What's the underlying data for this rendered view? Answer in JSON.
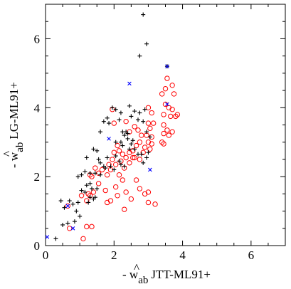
{
  "chart_data": {
    "type": "scatter",
    "xlabel": {
      "hat": "^",
      "prefix": "- w",
      "sub": "ab",
      "suffix": "JTT-ML91+"
    },
    "ylabel": {
      "hat": "^",
      "prefix": "- w",
      "sub": "ab",
      "suffix": "LG-ML91+"
    },
    "xlim": [
      0,
      7
    ],
    "ylim": [
      0,
      7
    ],
    "xticks": [
      "0",
      "2",
      "4",
      "6"
    ],
    "yticks": [
      "0",
      "2",
      "4",
      "6"
    ],
    "grid": false,
    "legend": "none",
    "colors": {
      "black": "#000000",
      "red": "#ff0000",
      "blue": "#0000ff"
    },
    "series": [
      {
        "marker": "plus",
        "color": "#000000",
        "points": [
          [
            2.85,
            6.7
          ],
          [
            2.95,
            5.85
          ],
          [
            2.75,
            5.5
          ],
          [
            3.55,
            5.2
          ],
          [
            1.6,
            3.3
          ],
          [
            1.7,
            3.6
          ],
          [
            1.8,
            3.7
          ],
          [
            1.85,
            3.55
          ],
          [
            1.95,
            4.0
          ],
          [
            2.05,
            3.95
          ],
          [
            2.15,
            3.65
          ],
          [
            2.2,
            3.85
          ],
          [
            2.25,
            3.3
          ],
          [
            2.35,
            3.3
          ],
          [
            2.4,
            3.25
          ],
          [
            2.45,
            4.05
          ],
          [
            2.5,
            3.75
          ],
          [
            2.6,
            3.9
          ],
          [
            2.7,
            3.65
          ],
          [
            2.75,
            3.85
          ],
          [
            2.85,
            3.6
          ],
          [
            2.9,
            3.95
          ],
          [
            2.95,
            3.3
          ],
          [
            3.05,
            3.15
          ],
          [
            2.05,
            3.0
          ],
          [
            2.2,
            3.0
          ],
          [
            2.25,
            2.9
          ],
          [
            2.3,
            3.2
          ],
          [
            2.4,
            3.1
          ],
          [
            2.45,
            2.8
          ],
          [
            2.5,
            2.95
          ],
          [
            2.55,
            3.05
          ],
          [
            2.6,
            2.8
          ],
          [
            2.7,
            2.65
          ],
          [
            2.8,
            2.65
          ],
          [
            2.85,
            2.4
          ],
          [
            2.95,
            2.55
          ],
          [
            3.0,
            2.7
          ],
          [
            1.2,
            2.55
          ],
          [
            1.4,
            2.8
          ],
          [
            1.5,
            2.75
          ],
          [
            1.55,
            2.5
          ],
          [
            1.6,
            2.4
          ],
          [
            1.7,
            2.3
          ],
          [
            1.75,
            2.25
          ],
          [
            1.8,
            2.55
          ],
          [
            1.9,
            2.3
          ],
          [
            2.0,
            2.2
          ],
          [
            2.05,
            2.6
          ],
          [
            2.15,
            2.45
          ],
          [
            2.2,
            2.35
          ],
          [
            2.3,
            2.3
          ],
          [
            0.95,
            2.0
          ],
          [
            1.05,
            2.05
          ],
          [
            1.15,
            2.15
          ],
          [
            1.3,
            2.1
          ],
          [
            1.45,
            2.1
          ],
          [
            1.6,
            2.05
          ],
          [
            1.05,
            1.6
          ],
          [
            1.15,
            1.55
          ],
          [
            1.2,
            1.75
          ],
          [
            1.3,
            1.8
          ],
          [
            1.35,
            1.65
          ],
          [
            1.5,
            1.65
          ],
          [
            0.55,
            1.1
          ],
          [
            0.7,
            1.3
          ],
          [
            0.8,
            1.2
          ],
          [
            0.9,
            1.0
          ],
          [
            0.95,
            1.25
          ],
          [
            0.45,
            1.3
          ],
          [
            1.0,
            0.85
          ],
          [
            0.85,
            0.7
          ],
          [
            0.65,
            0.65
          ],
          [
            0.5,
            0.6
          ],
          [
            0.3,
            0.2
          ],
          [
            1.4,
            1.35
          ],
          [
            1.3,
            1.4
          ],
          [
            1.25,
            1.25
          ],
          [
            1.45,
            1.4
          ]
        ]
      },
      {
        "marker": "circle",
        "color": "#ff0000",
        "points": [
          [
            3.55,
            4.85
          ],
          [
            3.5,
            4.55
          ],
          [
            3.7,
            4.65
          ],
          [
            3.75,
            4.4
          ],
          [
            3.4,
            4.4
          ],
          [
            3.5,
            4.1
          ],
          [
            3.6,
            4.0
          ],
          [
            3.7,
            3.95
          ],
          [
            3.8,
            3.75
          ],
          [
            3.65,
            3.75
          ],
          [
            3.85,
            3.8
          ],
          [
            3.45,
            3.8
          ],
          [
            3.45,
            3.5
          ],
          [
            3.55,
            3.35
          ],
          [
            3.45,
            3.25
          ],
          [
            3.6,
            3.2
          ],
          [
            3.7,
            3.3
          ],
          [
            3.4,
            3.0
          ],
          [
            3.45,
            2.95
          ],
          [
            3.0,
            4.0
          ],
          [
            3.1,
            3.85
          ],
          [
            3.0,
            3.55
          ],
          [
            3.15,
            3.55
          ],
          [
            3.05,
            3.4
          ],
          [
            2.95,
            3.2
          ],
          [
            3.1,
            3.15
          ],
          [
            3.0,
            3.0
          ],
          [
            3.1,
            2.95
          ],
          [
            2.9,
            2.85
          ],
          [
            3.05,
            2.8
          ],
          [
            1.95,
            3.95
          ],
          [
            2.0,
            3.55
          ],
          [
            2.35,
            3.6
          ],
          [
            2.6,
            3.45
          ],
          [
            2.45,
            3.3
          ],
          [
            2.7,
            3.35
          ],
          [
            2.8,
            3.2
          ],
          [
            2.75,
            3.0
          ],
          [
            2.65,
            2.9
          ],
          [
            2.55,
            2.75
          ],
          [
            2.45,
            2.7
          ],
          [
            2.35,
            2.55
          ],
          [
            2.25,
            2.65
          ],
          [
            2.15,
            2.75
          ],
          [
            2.1,
            2.9
          ],
          [
            2.2,
            2.45
          ],
          [
            2.3,
            2.25
          ],
          [
            2.45,
            2.4
          ],
          [
            2.6,
            2.55
          ],
          [
            2.75,
            2.5
          ],
          [
            2.85,
            2.7
          ],
          [
            2.55,
            2.55
          ],
          [
            1.95,
            2.5
          ],
          [
            2.0,
            2.7
          ],
          [
            1.9,
            2.2
          ],
          [
            2.05,
            2.35
          ],
          [
            1.85,
            2.35
          ],
          [
            1.8,
            2.05
          ],
          [
            1.65,
            2.2
          ],
          [
            1.55,
            2.1
          ],
          [
            1.45,
            2.25
          ],
          [
            1.35,
            2.0
          ],
          [
            1.3,
            2.05
          ],
          [
            1.55,
            1.8
          ],
          [
            1.75,
            1.6
          ],
          [
            1.8,
            1.25
          ],
          [
            1.9,
            1.3
          ],
          [
            2.05,
            1.7
          ],
          [
            2.1,
            1.45
          ],
          [
            2.15,
            2.05
          ],
          [
            2.25,
            1.9
          ],
          [
            2.35,
            1.55
          ],
          [
            2.5,
            1.35
          ],
          [
            2.3,
            1.05
          ],
          [
            2.65,
            1.9
          ],
          [
            2.75,
            1.65
          ],
          [
            2.9,
            1.5
          ],
          [
            3.0,
            1.55
          ],
          [
            3.2,
            1.2
          ],
          [
            3.0,
            1.25
          ],
          [
            1.05,
            1.45
          ],
          [
            1.2,
            1.3
          ],
          [
            1.25,
            1.5
          ],
          [
            1.3,
            1.45
          ],
          [
            1.4,
            1.55
          ],
          [
            1.35,
            0.55
          ],
          [
            1.1,
            0.2
          ],
          [
            1.2,
            0.55
          ],
          [
            0.7,
            0.5
          ],
          [
            0.65,
            1.15
          ]
        ]
      },
      {
        "marker": "x",
        "color": "#0000ff",
        "points": [
          [
            0.05,
            0.25
          ],
          [
            0.65,
            1.15
          ],
          [
            0.8,
            0.5
          ],
          [
            1.85,
            3.1
          ],
          [
            2.45,
            4.7
          ],
          [
            3.55,
            4.1
          ],
          [
            3.05,
            2.2
          ],
          [
            3.55,
            5.2
          ]
        ]
      }
    ]
  }
}
